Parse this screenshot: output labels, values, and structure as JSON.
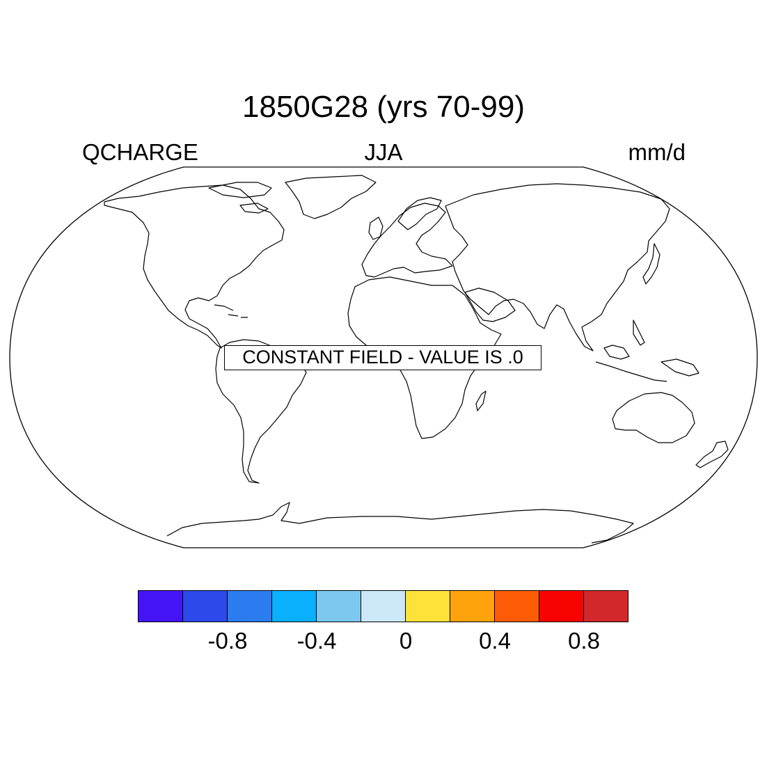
{
  "title": "1850G28 (yrs 70-99)",
  "left_string": "QCHARGE",
  "center_string": "JJA",
  "right_string": "mm/d",
  "map": {
    "projection": "Robinson",
    "annotation": "CONSTANT FIELD - VALUE IS .0",
    "line_color": "#000000",
    "background": "#ffffff"
  },
  "colorbar": {
    "colors": [
      "#4514f5",
      "#2d48eb",
      "#2b7def",
      "#0ab0fb",
      "#7cc8ef",
      "#cce8f8",
      "#fde23a",
      "#fea30b",
      "#fd5b05",
      "#f80202",
      "#d2282b"
    ],
    "tick_labels": [
      "-0.8",
      "-0.4",
      "0",
      "0.4",
      "0.8"
    ],
    "tick_values": [
      -0.8,
      -0.4,
      0,
      0.4,
      0.8
    ],
    "levels": [
      -1.0,
      -0.8,
      -0.6,
      -0.4,
      -0.2,
      0,
      0.2,
      0.4,
      0.6,
      0.8,
      1.0
    ]
  }
}
